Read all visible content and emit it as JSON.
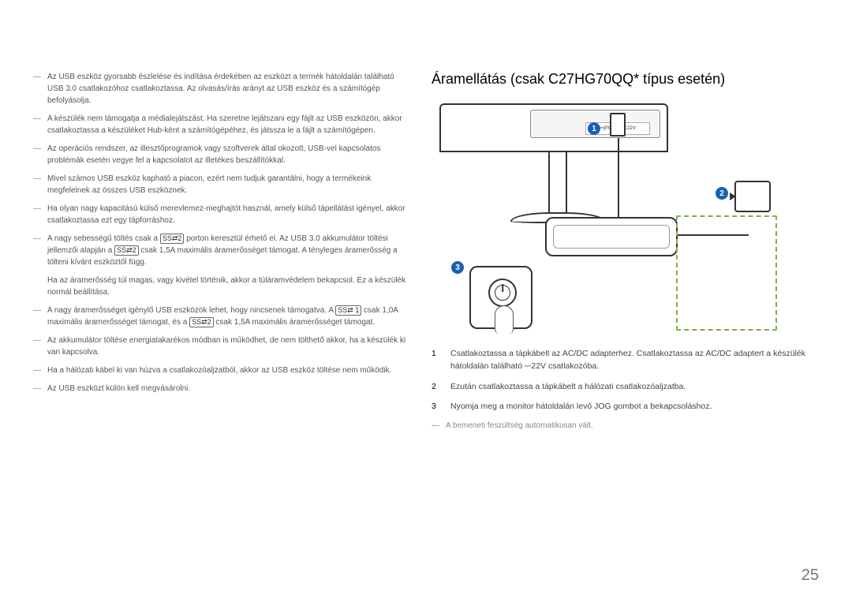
{
  "left": {
    "items": [
      "Az USB eszköz gyorsabb észlelése és indítása érdekében az eszközt a termék hátoldalán található USB 3.0 csatlakozóhoz csatlakoztassa. Az olvasás/írás arányt az USB eszköz és a számítógép befolyásolja.",
      "A készülék nem támogatja a médialejátszást. Ha szeretne lejátszani egy fájlt az USB eszközön, akkor csatlakoztassa a készüléket Hub-ként a számítógépéhez, és játssza le a fájlt a számítógépen.",
      "Az operációs rendszer, az illesztőprogramok vagy szoftverek által okozott, USB-vel kapcsolatos problémák esetén vegye fel a kapcsolatot az illetékes beszállítókkal.",
      "Mivel számos USB eszköz kapható a piacon, ezért nem tudjuk garantálni, hogy a termékeink megfelelnek az összes USB eszköznek.",
      "Ha olyan nagy kapacitású külső merevlemez-meghajtót használ, amely külső tápellátást igényel, akkor csatlakoztassa ezt egy tápforráshoz."
    ],
    "item6_a": "A nagy sebességű töltés csak a ",
    "item6_b": " porton keresztül érhető el. Az USB 3.0 akkumulátor töltési jellemzői alapján a ",
    "item6_c": " csak 1,5A maximális áramerősséget támogat. A tényleges áramerősség a tölteni kívánt eszköztől függ.",
    "item6_note": "Ha az áramerősség túl magas, vagy kivétel történik, akkor a túláramvédelem bekapcsol. Ez a készülék normál beállítása.",
    "item7_a": "A nagy áramerősséget igénylő USB eszközök lehet, hogy nincsenek támogatva. A ",
    "item7_b": " csak 1,0A maximális áramerősséget támogat, és a ",
    "item7_c": " csak 1,5A maximális áramerősséget támogat.",
    "items_tail": [
      "Az akkumulátor töltése energiatakarékos módban is működhet, de nem tölthető akkor, ha a készülék ki van kapcsolva.",
      "Ha a hálózati kábel ki van húzva a csatlakozóaljzatból, akkor az USB eszköz töltése nem működik.",
      "Az USB eszközt külön kell megvásárolni."
    ],
    "icon_ss2": "SS⇄2",
    "icon_ss1": "SS⇄ 1"
  },
  "right": {
    "title": "Áramellátás (csak C27HG70QQ* típus esetén)",
    "port_labels": "⎓(PC IN)   DC22V",
    "marker1": "1",
    "marker2": "2",
    "marker3": "3",
    "steps": [
      {
        "n": "1",
        "t": "Csatlakoztassa a tápkábelt az AC/DC adapterhez. Csatlakoztassa az AC/DC adaptert a készülék hátoldalán található ⎓22V csatlakozóba."
      },
      {
        "n": "2",
        "t": "Ezután csatlakoztassa a tápkábelt a hálózati csatlakozóaljzatba."
      },
      {
        "n": "3",
        "t": "Nyomja meg a monitor hátoldalán levő JOG gombot a bekapcsoláshoz."
      }
    ],
    "note": "A bemeneti feszültség automatikusan vált."
  },
  "page_number": "25"
}
